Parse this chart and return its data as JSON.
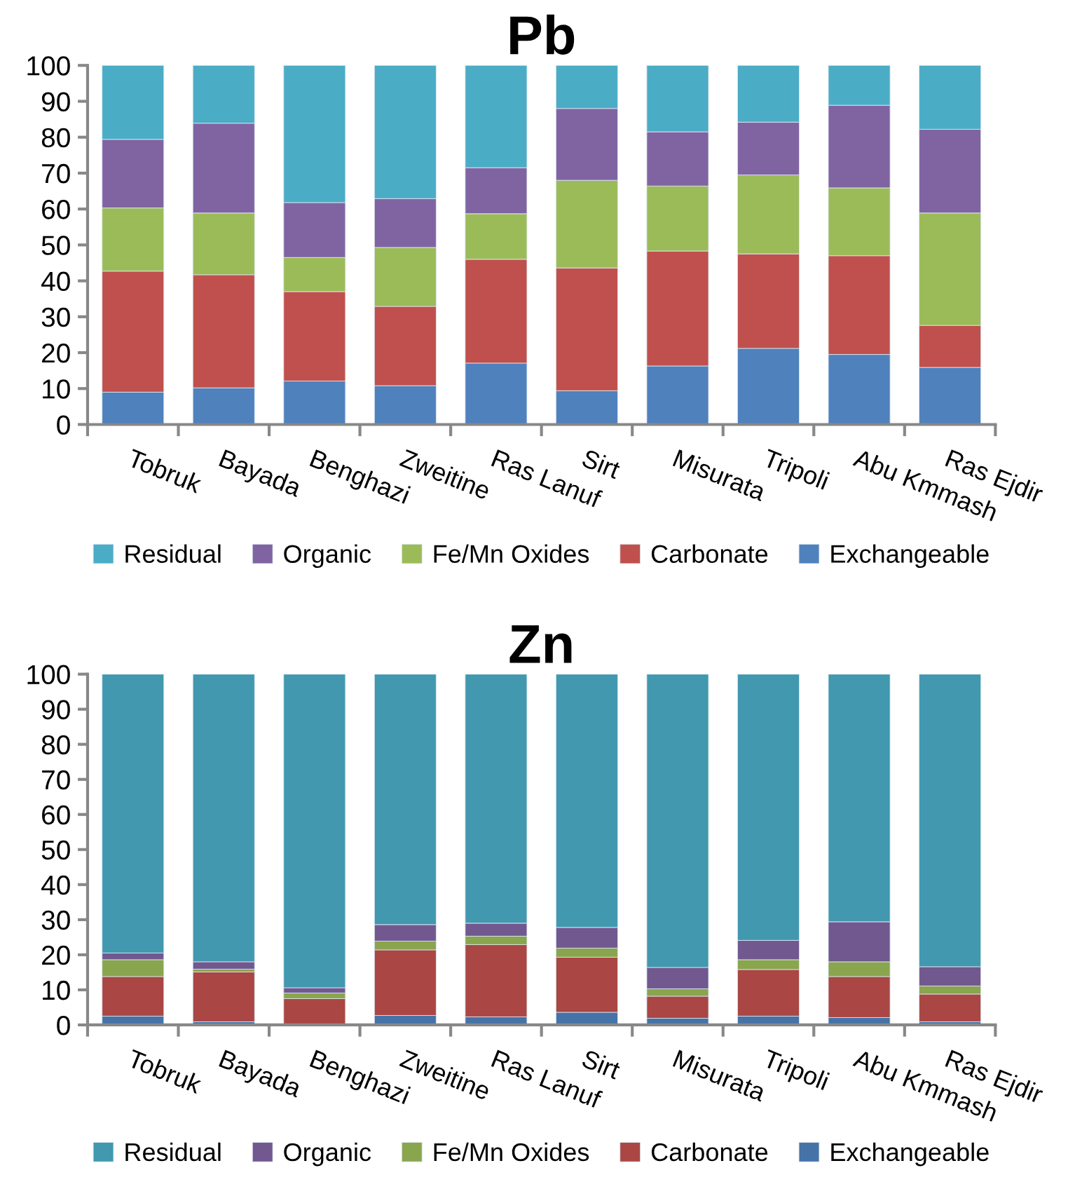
{
  "chart_data": [
    {
      "type": "bar",
      "title": "Pb",
      "stacked": true,
      "legend": "bottom",
      "grid": false,
      "categories": [
        "Tobruk",
        "Bayada",
        "Benghazi",
        "Zweitine",
        "Ras Lanuf",
        "Sirt",
        "Misurata",
        "Tripoli",
        "Abu Kmmash",
        "Ras Ejdir"
      ],
      "ylim": [
        0,
        100
      ],
      "yticks": [
        0,
        10,
        20,
        30,
        40,
        50,
        60,
        70,
        80,
        90,
        100
      ],
      "series": [
        {
          "name": "Exchangeable",
          "color": "#4f81bd",
          "values": [
            9.0,
            10.2,
            12.1,
            10.8,
            17.1,
            9.4,
            16.3,
            21.2,
            19.5,
            15.9
          ]
        },
        {
          "name": "Carbonate",
          "color": "#c0504d",
          "values": [
            33.7,
            31.5,
            24.9,
            22.1,
            28.9,
            34.2,
            32.0,
            26.3,
            27.5,
            11.7
          ]
        },
        {
          "name": "Fe/Mn Oxides",
          "color": "#9bbb59",
          "values": [
            17.6,
            17.2,
            9.5,
            16.4,
            12.7,
            24.4,
            18.1,
            22.0,
            18.9,
            31.3
          ]
        },
        {
          "name": "Organic",
          "color": "#8064a2",
          "values": [
            19.1,
            25.0,
            15.3,
            13.6,
            12.8,
            20.0,
            15.1,
            14.7,
            23.0,
            23.3
          ]
        },
        {
          "name": "Residual",
          "color": "#4bacc6",
          "values": [
            20.6,
            16.1,
            38.2,
            37.1,
            28.5,
            12.0,
            18.5,
            15.8,
            11.1,
            17.8
          ]
        }
      ]
    },
    {
      "type": "bar",
      "title": "Zn",
      "stacked": true,
      "legend": "bottom",
      "grid": false,
      "categories": [
        "Tobruk",
        "Bayada",
        "Benghazi",
        "Zweitine",
        "Ras Lanuf",
        "Sirt",
        "Misurata",
        "Tripoli",
        "Abu Kmmash",
        "Ras Ejdir"
      ],
      "ylim": [
        0,
        100
      ],
      "yticks": [
        0,
        10,
        20,
        30,
        40,
        50,
        60,
        70,
        80,
        90,
        100
      ],
      "series": [
        {
          "name": "Exchangeable",
          "color": "#4572a7",
          "values": [
            2.5,
            0.9,
            0.3,
            2.7,
            2.3,
            3.6,
            1.9,
            2.5,
            2.1,
            0.9
          ]
        },
        {
          "name": "Carbonate",
          "color": "#aa4643",
          "values": [
            11.3,
            14.2,
            7.2,
            18.7,
            20.6,
            15.7,
            6.3,
            13.3,
            11.7,
            7.9
          ]
        },
        {
          "name": "Fe/Mn Oxides",
          "color": "#89a54e",
          "values": [
            4.8,
            0.8,
            1.6,
            2.5,
            2.4,
            2.6,
            2.1,
            2.8,
            4.2,
            2.3
          ]
        },
        {
          "name": "Organic",
          "color": "#71588f",
          "values": [
            1.9,
            2.1,
            1.5,
            4.7,
            3.7,
            5.9,
            6.1,
            5.5,
            11.4,
            5.5
          ]
        },
        {
          "name": "Residual",
          "color": "#4198af",
          "values": [
            79.5,
            82.0,
            89.4,
            71.4,
            71.0,
            72.2,
            83.6,
            75.9,
            70.6,
            83.4
          ]
        }
      ]
    }
  ]
}
